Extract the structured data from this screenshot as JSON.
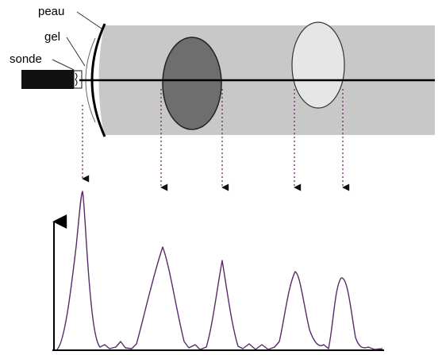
{
  "labels": {
    "skin": "peau",
    "gel": "gel",
    "probe": "sonde"
  },
  "colors": {
    "tissue": "#c8c8c8",
    "dark_structure": "#6e6e6e",
    "light_structure": "#e6e6e6",
    "signal": "#5a2a6a",
    "projection": "#6a2a6a",
    "probe": "#111111"
  },
  "structures": [
    {
      "name": "skin-interface",
      "shade": "boundary"
    },
    {
      "name": "dark-ellipse",
      "shade": "dark"
    },
    {
      "name": "light-ellipse",
      "shade": "light"
    }
  ],
  "echoes": [
    {
      "source": "skin",
      "relative_amplitude": 1.0
    },
    {
      "source": "dark-ellipse-front",
      "relative_amplitude": 0.64
    },
    {
      "source": "dark-ellipse-back",
      "relative_amplitude": 0.56
    },
    {
      "source": "light-ellipse-front",
      "relative_amplitude": 0.49
    },
    {
      "source": "light-ellipse-back",
      "relative_amplitude": 0.45
    }
  ]
}
